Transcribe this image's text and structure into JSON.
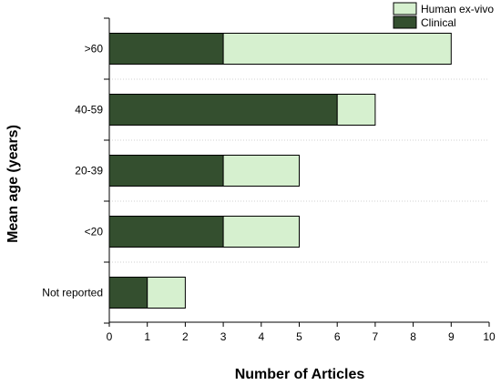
{
  "chart_data": {
    "type": "bar",
    "orientation": "horizontal",
    "stacked": true,
    "title": "",
    "xlabel": "Number of Articles",
    "ylabel": "Mean age (years)",
    "categories": [
      ">60",
      "40-59",
      "20-39",
      "<20",
      "Not reported"
    ],
    "series": [
      {
        "name": "Clinical",
        "values": [
          3,
          6,
          3,
          3,
          1
        ],
        "color": "#344f2f"
      },
      {
        "name": "Human ex-vivo",
        "values": [
          6,
          1,
          2,
          2,
          1
        ],
        "color": "#d6f0cf"
      }
    ],
    "xlim": [
      0,
      10
    ],
    "xticks": [
      "0",
      "1",
      "2",
      "3",
      "4",
      "5",
      "6",
      "7",
      "8",
      "9",
      "10"
    ],
    "grid": "horizontal dotted separators",
    "legend": {
      "placement": "top-right",
      "order": [
        "Human ex-vivo",
        "Clinical"
      ]
    }
  }
}
